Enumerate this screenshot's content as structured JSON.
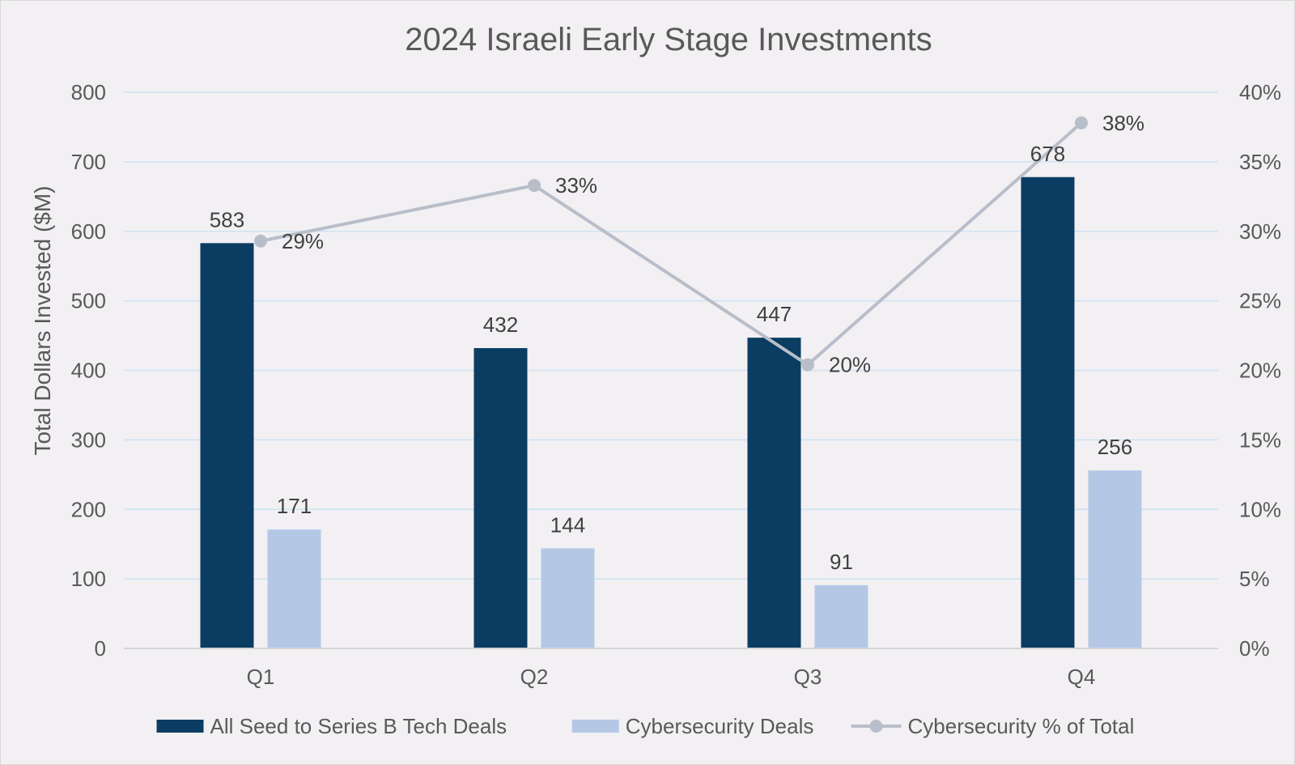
{
  "chart_data": {
    "type": "bar",
    "title": "2024 Israeli Early Stage Investments",
    "ylabel": "Total Dollars Invested ($M)",
    "xlabel": "",
    "categories": [
      "Q1",
      "Q2",
      "Q3",
      "Q4"
    ],
    "ylim": [
      0,
      800
    ],
    "y_ticks": [
      0,
      100,
      200,
      300,
      400,
      500,
      600,
      700,
      800
    ],
    "y2lim": [
      0,
      40
    ],
    "y2_ticks": [
      0,
      5,
      10,
      15,
      20,
      25,
      30,
      35,
      40
    ],
    "y2_tick_labels": [
      "0%",
      "5%",
      "10%",
      "15%",
      "20%",
      "25%",
      "30%",
      "35%",
      "40%"
    ],
    "grid": true,
    "legend_position": "bottom",
    "series": [
      {
        "name": "All Seed to Series B Tech Deals",
        "type": "bar",
        "axis": "left",
        "color": "#0b3d62",
        "values": [
          583,
          432,
          447,
          678
        ],
        "labels": [
          "583",
          "432",
          "447",
          "678"
        ]
      },
      {
        "name": "Cybersecurity Deals",
        "type": "bar",
        "axis": "left",
        "color": "#b4c8e6",
        "values": [
          171,
          144,
          91,
          256
        ],
        "labels": [
          "171",
          "144",
          "91",
          "256"
        ]
      },
      {
        "name": "Cybersecurity % of Total",
        "type": "line",
        "axis": "right",
        "color": "#b8bec9",
        "values": [
          29.3,
          33.3,
          20.4,
          37.8
        ],
        "labels": [
          "29%",
          "33%",
          "20%",
          "38%"
        ]
      }
    ]
  },
  "colors": {
    "background": "#f2f0f3",
    "grid": "#cde2f2",
    "axis_text": "#595959",
    "title_text": "#595959",
    "label_text": "#404040"
  }
}
